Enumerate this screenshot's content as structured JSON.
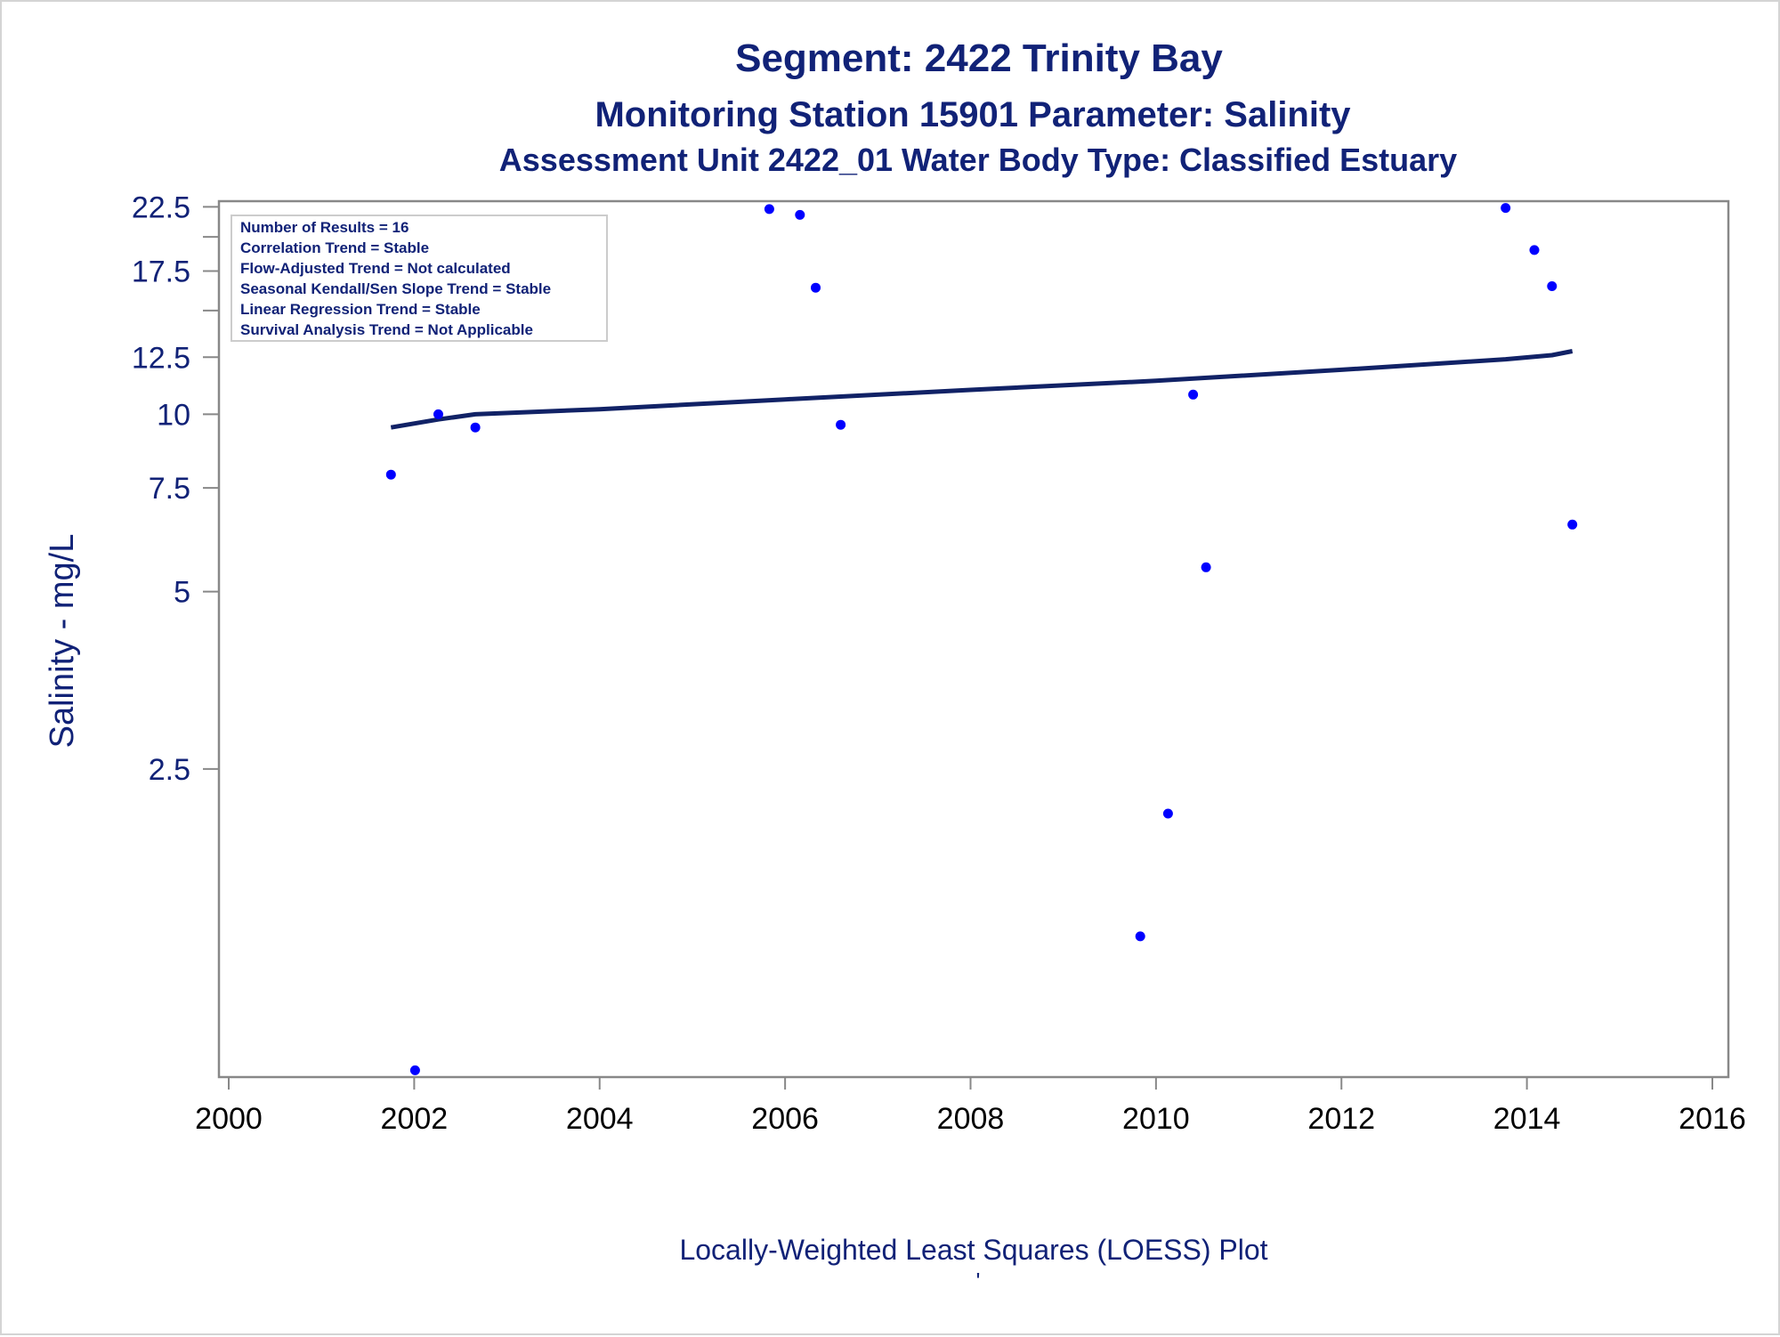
{
  "titles": {
    "line1": "Segment: 2422  Trinity Bay",
    "line2": "Monitoring Station 15901 Parameter: Salinity",
    "line3": "Assessment Unit 2422_01   Water Body Type: Classified Estuary"
  },
  "footnote": {
    "caption": "Locally-Weighted Least Squares (LOESS) Plot",
    "mark": "'"
  },
  "stats_box": [
    "Number of Results = 16",
    "Correlation Trend = Stable",
    "Flow-Adjusted Trend = Not calculated",
    "Seasonal Kendall/Sen Slope Trend = Stable",
    "Linear Regression Trend = Stable",
    "Survival Analysis Trend = Not Applicable"
  ],
  "colors": {
    "title": "#112277",
    "points": "#0000ff",
    "loess_line": "#112266",
    "axis": "#888888"
  },
  "chart_data": {
    "type": "scatter",
    "title": "Segment: 2422  Trinity Bay",
    "xlabel": "",
    "ylabel": "Salinity - mg/L",
    "xlim": [
      2000,
      2016
    ],
    "ylim": [
      0.75,
      23
    ],
    "y_scale": "log",
    "x_ticks": [
      2000,
      2002,
      2004,
      2006,
      2008,
      2010,
      2012,
      2014,
      2016
    ],
    "y_ticks": [
      2.5,
      5,
      7.5,
      10,
      12.5,
      17.5,
      22.5
    ],
    "y_minor_ticks": [
      15,
      20
    ],
    "grid": false,
    "legend": "top-left",
    "series": [
      {
        "type": "scatter",
        "points": [
          {
            "x": 2001.75,
            "y": 7.9
          },
          {
            "x": 2002.01,
            "y": 0.77
          },
          {
            "x": 2002.26,
            "y": 10.0
          },
          {
            "x": 2002.66,
            "y": 9.5
          },
          {
            "x": 2005.83,
            "y": 22.3
          },
          {
            "x": 2006.16,
            "y": 21.8
          },
          {
            "x": 2006.33,
            "y": 16.4
          },
          {
            "x": 2006.6,
            "y": 9.6
          },
          {
            "x": 2009.83,
            "y": 1.3
          },
          {
            "x": 2010.13,
            "y": 2.1
          },
          {
            "x": 2010.4,
            "y": 10.8
          },
          {
            "x": 2010.54,
            "y": 5.5
          },
          {
            "x": 2013.77,
            "y": 22.4
          },
          {
            "x": 2014.08,
            "y": 19.0
          },
          {
            "x": 2014.27,
            "y": 16.5
          },
          {
            "x": 2014.49,
            "y": 6.5
          }
        ]
      },
      {
        "type": "line",
        "points": [
          {
            "x": 2001.75,
            "y": 9.5
          },
          {
            "x": 2002.26,
            "y": 9.8
          },
          {
            "x": 2002.66,
            "y": 10.0
          },
          {
            "x": 2004.0,
            "y": 10.2
          },
          {
            "x": 2006.0,
            "y": 10.6
          },
          {
            "x": 2008.0,
            "y": 11.0
          },
          {
            "x": 2010.0,
            "y": 11.4
          },
          {
            "x": 2012.0,
            "y": 11.9
          },
          {
            "x": 2013.77,
            "y": 12.4
          },
          {
            "x": 2014.27,
            "y": 12.6
          },
          {
            "x": 2014.49,
            "y": 12.8
          }
        ]
      }
    ]
  }
}
